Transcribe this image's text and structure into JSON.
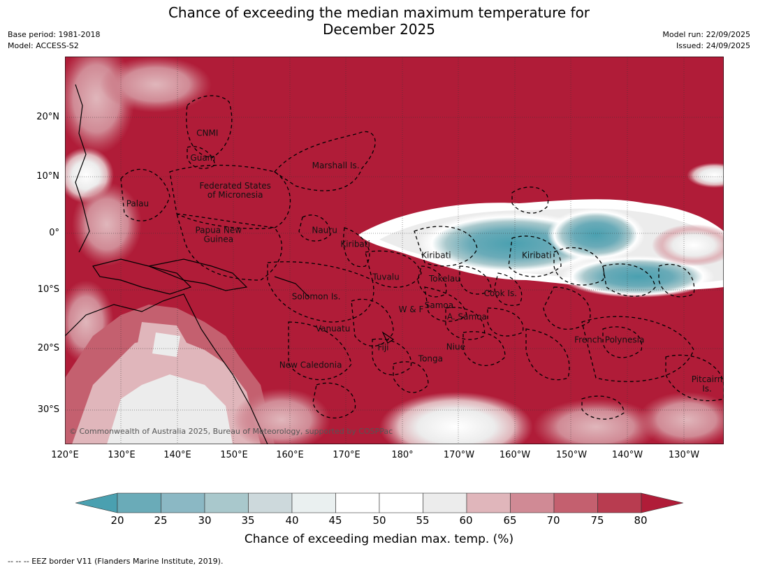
{
  "title": {
    "line1": "Chance of exceeding the median maximum temperature for",
    "line2": "December 2025"
  },
  "meta": {
    "base_period": "Base period: 1981-2018",
    "model": "Model: ACCESS-S2",
    "model_run": "Model run: 22/09/2025",
    "issued": "Issued: 24/09/2025"
  },
  "map": {
    "lon_ticks": [
      "120°E",
      "130°E",
      "140°E",
      "150°E",
      "160°E",
      "170°E",
      "180°",
      "170°W",
      "160°W",
      "150°W",
      "140°W",
      "130°W"
    ],
    "lat_ticks": [
      "20°N",
      "10°N",
      "0°",
      "10°S",
      "20°S",
      "30°S"
    ],
    "lon_range": [
      120,
      238
    ],
    "lat_range": [
      -36,
      30
    ],
    "background_color": "#b01c38",
    "regions": [
      {
        "name": "CNMI",
        "lon": 145.5,
        "lat": 16.5
      },
      {
        "name": "Guam",
        "lon": 144.7,
        "lat": 12.3
      },
      {
        "name": "Marshall Is.",
        "lon": 168.5,
        "lat": 11.0
      },
      {
        "name": "Federated States",
        "lon": 150.5,
        "lat": 7.5
      },
      {
        "name": "of Micronesia",
        "lon": 150.5,
        "lat": 6.0
      },
      {
        "name": "Palau",
        "lon": 133.0,
        "lat": 4.5
      },
      {
        "name": "Papua New",
        "lon": 147.5,
        "lat": 0.0
      },
      {
        "name": "Guinea",
        "lon": 147.5,
        "lat": -1.6
      },
      {
        "name": "Nauru",
        "lon": 166.5,
        "lat": 0.0
      },
      {
        "name": "Kiribati",
        "lon": 172.0,
        "lat": -2.4
      },
      {
        "name": "Kiribati",
        "lon": 186.5,
        "lat": -4.3
      },
      {
        "name": "Kiribati",
        "lon": 204.5,
        "lat": -4.3
      },
      {
        "name": "Tuvalu",
        "lon": 177.5,
        "lat": -8.0
      },
      {
        "name": "Tokelau",
        "lon": 188.0,
        "lat": -8.3
      },
      {
        "name": "Cook Is.",
        "lon": 198.0,
        "lat": -10.8
      },
      {
        "name": "Solomon Is.",
        "lon": 165.0,
        "lat": -11.3
      },
      {
        "name": "Samoa",
        "lon": 187.0,
        "lat": -12.8
      },
      {
        "name": "W & F",
        "lon": 182.0,
        "lat": -13.5
      },
      {
        "name": "A. Samoa",
        "lon": 192.0,
        "lat": -14.8
      },
      {
        "name": "Vanuatu",
        "lon": 168.0,
        "lat": -16.8
      },
      {
        "name": "Fiji",
        "lon": 177.0,
        "lat": -20.0
      },
      {
        "name": "Niue",
        "lon": 190.0,
        "lat": -19.9
      },
      {
        "name": "Tonga",
        "lon": 185.5,
        "lat": -21.9
      },
      {
        "name": "French Polynesia",
        "lon": 217.5,
        "lat": -18.7
      },
      {
        "name": "New Caledonia",
        "lon": 164.0,
        "lat": -23.0
      },
      {
        "name": "Pitcairn",
        "lon": 235.0,
        "lat": -25.4
      },
      {
        "name": "Is.",
        "lon": 235.0,
        "lat": -27.0
      }
    ],
    "copyright": "© Commonwealth of Australia 2025, Bureau of Meteorology, supported by COSPPac"
  },
  "colorbar": {
    "ticks": [
      "20",
      "25",
      "30",
      "35",
      "40",
      "45",
      "50",
      "55",
      "60",
      "65",
      "70",
      "75",
      "80"
    ],
    "colors": [
      "#4aa0b0",
      "#6aabb8",
      "#8bb8c4",
      "#a9c8cc",
      "#cdd9dc",
      "#eaf0f0",
      "#ffffff",
      "#ffffff",
      "#ececec",
      "#e0b6bb",
      "#d08a95",
      "#c4606f",
      "#b83c50",
      "#b01c38"
    ],
    "label": "Chance of exceeding median max. temp. (%)"
  },
  "footer": "--  --  -- EEZ border V11 (Flanders Marine Institute, 2019)."
}
